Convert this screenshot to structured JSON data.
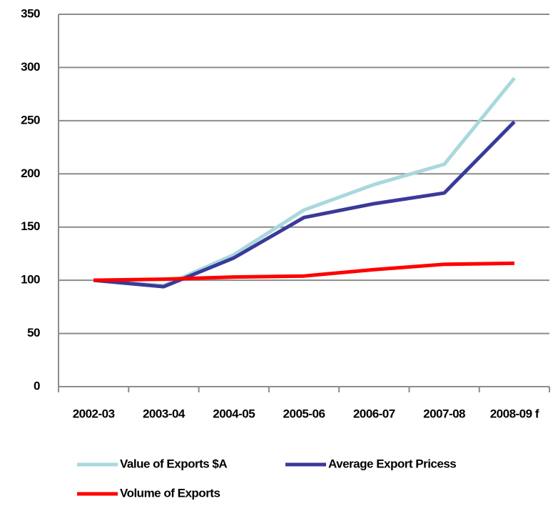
{
  "chart_data": {
    "type": "line",
    "categories": [
      "2002-03",
      "2003-04",
      "2004-05",
      "2005-06",
      "2006-07",
      "2007-08",
      "2008-09 f"
    ],
    "series": [
      {
        "name": "Value of Exports $A",
        "color": "#a9d8dc",
        "values": [
          100,
          95,
          124,
          166,
          190,
          209,
          290
        ]
      },
      {
        "name": "Average Export Pricess",
        "color": "#3a3a99",
        "values": [
          100,
          94,
          121,
          159,
          172,
          182,
          249
        ]
      },
      {
        "name": "Volume of Exports",
        "color": "#ff0000",
        "values": [
          100,
          101,
          103,
          104,
          110,
          115,
          116
        ]
      }
    ],
    "ylim": [
      0,
      350
    ],
    "yticks": [
      0,
      50,
      100,
      150,
      200,
      250,
      300,
      350
    ],
    "grid": true
  }
}
